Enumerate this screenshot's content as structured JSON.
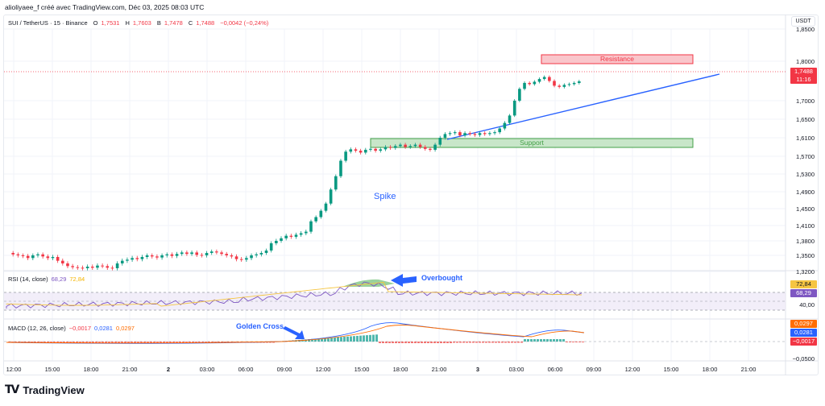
{
  "credit": "alioliyaee_f créé avec TradingView.com, Déc 03, 2025 08:03 UTC",
  "legend": {
    "symbol": "SUI / TetherUS · 15 · Binance",
    "o_label": "O",
    "o_value": "1,7531",
    "h_label": "H",
    "h_value": "1,7603",
    "b_label": "B",
    "b_value": "1,7478",
    "c_label": "C",
    "c_value": "1,7488",
    "change": "−0,0042 (−0,24%)"
  },
  "price_scale": {
    "currency": "USDT",
    "ticks": [
      "1,8500",
      "1,8000",
      "1,7000",
      "1,6500",
      "1,6100",
      "1,5700",
      "1,5300",
      "1,4900",
      "1,4500",
      "1,4100",
      "1,3800",
      "1,3500",
      "1,3200"
    ],
    "current_price": "1,7488",
    "countdown": "11:16",
    "current_color": "#f23645"
  },
  "rsi": {
    "label": "RSI (14, close)",
    "value": "68,29",
    "ma_value": "72,84",
    "scale_tick": "40,00",
    "rsi_color": "#7e57c2",
    "ma_color": "#f5c542"
  },
  "macd": {
    "label": "MACD (12, 26, close)",
    "histogram": "−0,0017",
    "macd": "0,0281",
    "signal": "0,0297",
    "scale_tick": "−0,0500",
    "hist_color": "#f23645",
    "macd_color": "#2962ff",
    "signal_color": "#ff6d00"
  },
  "annotations": {
    "resistance": "Resistance",
    "support": "Support",
    "spike": "Spike",
    "overbought": "Overbought",
    "golden_cross": "Golden Cross"
  },
  "time_axis": [
    "12:00",
    "15:00",
    "18:00",
    "21:00",
    "2",
    "03:00",
    "06:00",
    "09:00",
    "12:00",
    "15:00",
    "18:00",
    "21:00",
    "3",
    "03:00",
    "06:00",
    "09:00",
    "12:00",
    "15:00",
    "18:00",
    "21:00"
  ],
  "brand": "TradingView",
  "colors": {
    "up": "#089981",
    "down": "#f23645",
    "trend": "#2962ff"
  }
}
